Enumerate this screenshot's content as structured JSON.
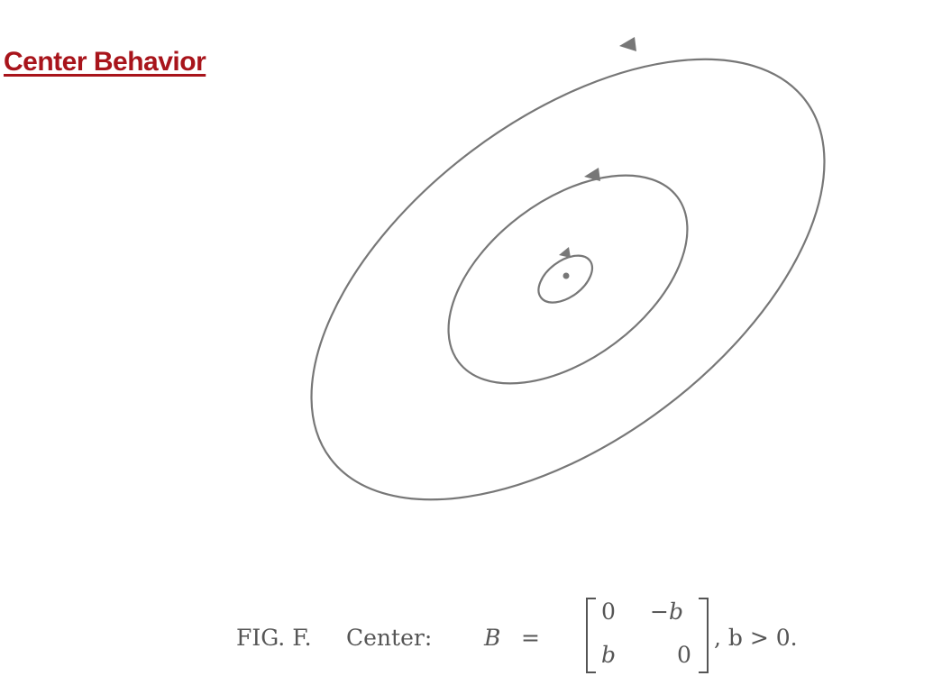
{
  "heading": "Center Behavior",
  "caption": {
    "fig_label": "FIG. F.",
    "type_label": "Center:",
    "matrix_symbol": "B",
    "equals": "=",
    "matrix": [
      [
        "0",
        "−b"
      ],
      [
        "b",
        "0"
      ]
    ],
    "condition": ", b > 0."
  },
  "colors": {
    "heading": "#a8141b",
    "curves": "#777777",
    "caption": "#555555"
  }
}
